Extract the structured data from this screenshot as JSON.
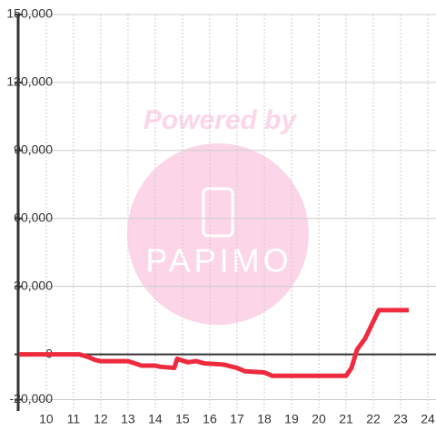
{
  "chart_data": {
    "type": "line",
    "watermark": {
      "top": "Powered by",
      "logo": "PAPIMO"
    },
    "x": [
      9,
      11.2,
      11.5,
      11.8,
      12.0,
      13.0,
      13.5,
      14.0,
      14.2,
      14.7,
      14.8,
      15.2,
      15.5,
      15.8,
      16.5,
      17.0,
      17.3,
      18.0,
      18.3,
      21.0,
      21.2,
      21.4,
      21.7,
      22.2,
      23.3
    ],
    "series": [
      {
        "color": "#ee2a3e",
        "values": [
          0,
          0,
          -1000,
          -2500,
          -3000,
          -3000,
          -5000,
          -5000,
          -5500,
          -6000,
          -2000,
          -3500,
          -3000,
          -4000,
          -4500,
          -6000,
          -7500,
          -8000,
          -9500,
          -9500,
          -6000,
          2000,
          7000,
          19500,
          19500
        ]
      }
    ],
    "xlim": [
      8.97,
      24.3
    ],
    "ylim": [
      -25000,
      150000
    ],
    "xticks": [
      10,
      11,
      12,
      13,
      14,
      15,
      16,
      17,
      18,
      19,
      20,
      21,
      22,
      23,
      24
    ],
    "yticks": [
      {
        "value": -20000,
        "label": "-20,000"
      },
      0,
      {
        "value": 30000,
        "label": "30,000"
      },
      {
        "value": 60000,
        "label": "60,000"
      },
      {
        "value": 90000,
        "label": "90,000"
      },
      {
        "value": 120000,
        "label": "120,000"
      },
      {
        "value": 150000,
        "label": "150,000"
      }
    ],
    "grid": true
  }
}
